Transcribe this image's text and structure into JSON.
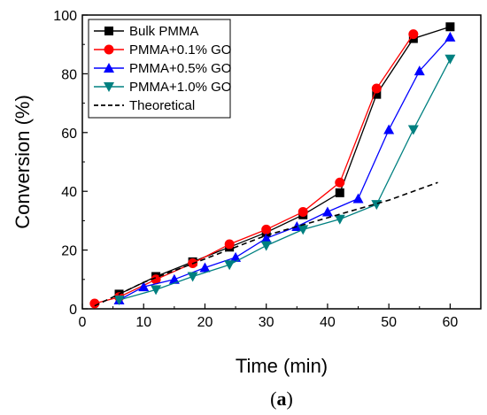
{
  "chart_data": {
    "type": "line",
    "xlabel": "Time (min)",
    "ylabel": "Conversion (%)",
    "xlim": [
      0,
      65
    ],
    "ylim": [
      0,
      100
    ],
    "xticks": [
      0,
      10,
      20,
      30,
      40,
      50,
      60
    ],
    "yticks": [
      0,
      20,
      40,
      60,
      80,
      100
    ],
    "grid": false,
    "legend_position": "top-left",
    "panel_label": {
      "open": "(",
      "letter": "a",
      "close": ")"
    },
    "series": [
      {
        "name": "Bulk PMMA",
        "color": "#000000",
        "marker": "square",
        "x": [
          6,
          12,
          18,
          24,
          30,
          36,
          42,
          48,
          54,
          60
        ],
        "y": [
          5,
          11,
          16,
          21,
          26,
          32,
          39.5,
          73,
          92,
          96
        ]
      },
      {
        "name": "PMMA+0.1% GO",
        "color": "#ff0000",
        "marker": "circle",
        "x": [
          2,
          6,
          12,
          18,
          24,
          30,
          36,
          42,
          48,
          54
        ],
        "y": [
          1.8,
          4,
          10,
          15.5,
          22,
          27,
          33,
          43,
          75,
          93.5
        ]
      },
      {
        "name": "PMMA+0.5% GO",
        "color": "#0000ff",
        "marker": "triangle-up",
        "x": [
          6,
          10,
          15,
          20,
          25,
          30,
          35,
          40,
          45,
          50,
          55,
          60
        ],
        "y": [
          3,
          7.5,
          10,
          14,
          17.5,
          24,
          28,
          33,
          37.5,
          61,
          81,
          92.5
        ]
      },
      {
        "name": "PMMA+1.0% GO",
        "color": "#008080",
        "marker": "triangle-down",
        "x": [
          6,
          12,
          18,
          24,
          30,
          36,
          42,
          48,
          54,
          60
        ],
        "y": [
          3,
          6.5,
          11,
          15,
          21.5,
          27,
          30.5,
          35.5,
          61,
          85
        ]
      },
      {
        "name": "Theoretical",
        "color": "#000000",
        "marker": "none",
        "dashed": true,
        "x": [
          2,
          10,
          20,
          30,
          40,
          50,
          58
        ],
        "y": [
          1,
          9,
          17,
          25,
          31,
          37,
          43
        ]
      }
    ]
  }
}
